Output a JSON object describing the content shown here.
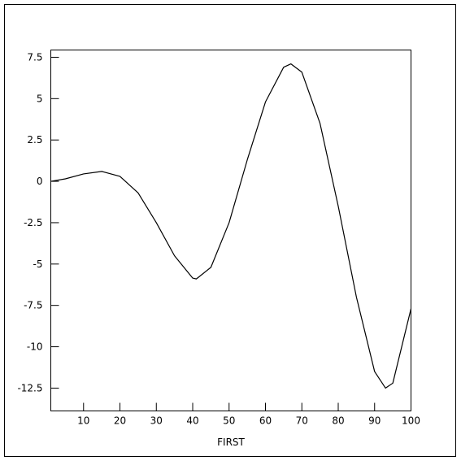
{
  "chart_data": {
    "type": "line",
    "x_label": "FIRST",
    "x": [
      1,
      5,
      10,
      15,
      20,
      25,
      30,
      35,
      40,
      41,
      45,
      50,
      55,
      60,
      65,
      67,
      70,
      75,
      80,
      85,
      90,
      93,
      95,
      100
    ],
    "values": [
      0,
      0.15,
      0.45,
      0.6,
      0.3,
      -0.7,
      -2.5,
      -4.5,
      -5.85,
      -5.9,
      -5.2,
      -2.5,
      1.3,
      4.8,
      6.9,
      7.1,
      6.6,
      3.5,
      -1.5,
      -7,
      -11.5,
      -12.5,
      -12.2,
      -7.7
    ],
    "color": "#000000",
    "xlim": [
      1,
      100
    ],
    "ylim": [
      -13.88,
      7.94
    ],
    "xticks": [
      10,
      20,
      30,
      40,
      50,
      60,
      70,
      80,
      90,
      100
    ],
    "yticks": [
      7.5,
      5,
      2.5,
      0,
      -2.5,
      -5,
      -7.5,
      -10,
      -12.5
    ],
    "grid": false
  }
}
